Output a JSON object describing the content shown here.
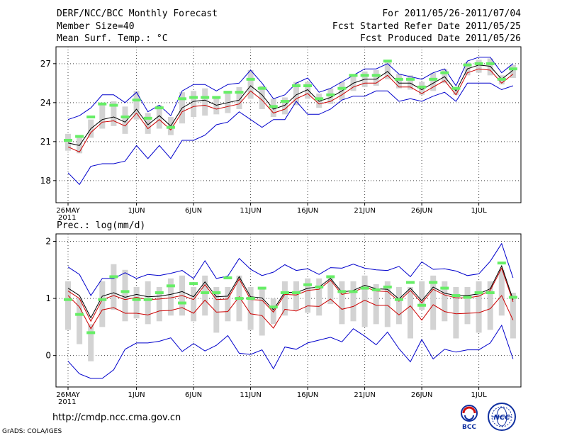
{
  "header": {
    "title": "DERF/NCC/BCC Monthly Forecast",
    "member_size": "Member Size=40",
    "variable": "Mean Surf. Temp.: °C",
    "period": "For 2011/05/26-2011/07/04",
    "fcst_started": "Fcst Started Refer Date 2011/05/25",
    "fcst_produced": "Fcst Produced Date 2011/05/26"
  },
  "footer": {
    "url": "http://cmdp.ncc.cma.gov.cn",
    "credit": "GrADS: COLA/IGES",
    "logo_bcc": "BCC",
    "logo_ncc": "NCC"
  },
  "colors": {
    "max_min_line": "#0000cc",
    "mean_line": "#000000",
    "median_line": "#cc0000",
    "box": "#d3d3d3",
    "obs_marker": "#66ee66",
    "grid": "#444444"
  },
  "chart_data": [
    {
      "type": "line",
      "title": "Mean Surf. Temp.: °C",
      "x_tick_labels": [
        "26MAY",
        "1JUN",
        "6JUN",
        "11JUN",
        "16JUN",
        "21JUN",
        "26JUN",
        "1JUL"
      ],
      "x_tick_year": "2011",
      "x_tick_day_index": [
        0,
        6,
        11,
        16,
        21,
        26,
        31,
        36
      ],
      "y_ticks": [
        18,
        21,
        24,
        27
      ],
      "y_tick_labels": [
        "18",
        "21",
        "24",
        "27"
      ],
      "ylim": [
        16.3,
        28.3
      ],
      "n_days": 40,
      "series": [
        {
          "name": "max",
          "values": [
            22.7,
            23.0,
            23.6,
            24.6,
            24.6,
            24.0,
            24.8,
            23.3,
            23.8,
            23.0,
            24.9,
            25.4,
            25.4,
            24.9,
            25.4,
            25.5,
            26.5,
            25.5,
            24.3,
            24.6,
            25.5,
            25.9,
            24.8,
            25.1,
            25.6,
            26.1,
            26.6,
            26.6,
            27.0,
            26.2,
            26.0,
            25.8,
            26.3,
            26.6,
            25.3,
            27.2,
            27.5,
            27.5,
            26.3,
            27.0
          ]
        },
        {
          "name": "min",
          "values": [
            18.6,
            17.7,
            19.1,
            19.3,
            19.3,
            19.5,
            20.7,
            19.7,
            20.7,
            19.7,
            21.1,
            21.1,
            21.5,
            22.3,
            22.5,
            23.3,
            22.7,
            22.1,
            22.7,
            22.7,
            24.1,
            23.1,
            23.1,
            23.5,
            24.2,
            24.5,
            24.5,
            24.9,
            24.9,
            24.1,
            24.3,
            24.1,
            24.5,
            24.8,
            24.1,
            25.5,
            25.5,
            25.5,
            25.0,
            25.3
          ]
        },
        {
          "name": "mean",
          "values": [
            20.9,
            20.7,
            22.0,
            22.7,
            22.9,
            22.5,
            23.5,
            22.3,
            23.0,
            22.2,
            23.6,
            24.1,
            24.2,
            23.8,
            24.0,
            24.2,
            25.3,
            24.6,
            23.5,
            23.8,
            24.6,
            25.0,
            24.1,
            24.4,
            24.9,
            25.5,
            25.8,
            25.8,
            26.4,
            25.5,
            25.5,
            25.0,
            25.5,
            26.0,
            24.9,
            26.6,
            26.9,
            26.8,
            25.8,
            26.5
          ]
        },
        {
          "name": "median",
          "values": [
            20.6,
            20.2,
            21.7,
            22.5,
            22.6,
            22.2,
            23.2,
            22.0,
            22.7,
            21.9,
            23.3,
            23.7,
            23.8,
            23.5,
            23.7,
            23.9,
            24.9,
            24.2,
            23.2,
            23.5,
            24.3,
            24.7,
            23.9,
            24.1,
            24.6,
            25.2,
            25.5,
            25.5,
            26.1,
            25.2,
            25.2,
            24.7,
            25.2,
            25.7,
            24.6,
            26.3,
            26.6,
            26.5,
            25.5,
            26.2
          ]
        },
        {
          "name": "box_q1",
          "values": [
            20.3,
            20.1,
            21.3,
            22.0,
            22.2,
            21.6,
            22.7,
            21.6,
            22.0,
            21.5,
            22.4,
            22.9,
            23.0,
            23.1,
            23.2,
            23.5,
            24.3,
            23.5,
            22.9,
            23.1,
            23.8,
            24.3,
            23.6,
            23.9,
            24.2,
            24.9,
            25.2,
            25.3,
            25.8,
            25.1,
            25.0,
            24.6,
            24.9,
            25.5,
            24.6,
            26.1,
            26.3,
            26.1,
            25.4,
            25.9
          ]
        },
        {
          "name": "box_q3",
          "values": [
            21.6,
            21.4,
            22.7,
            23.9,
            24.1,
            23.7,
            24.9,
            23.2,
            23.8,
            22.9,
            24.8,
            24.9,
            25.1,
            24.5,
            24.9,
            25.2,
            26.5,
            25.3,
            24.3,
            24.4,
            25.6,
            25.6,
            24.7,
            25.1,
            25.6,
            26.2,
            26.4,
            26.5,
            27.2,
            26.2,
            26.1,
            25.6,
            26.3,
            26.6,
            25.1,
            27.1,
            27.3,
            27.4,
            26.1,
            26.9
          ]
        },
        {
          "name": "obs",
          "values": [
            21.1,
            21.4,
            22.9,
            23.9,
            23.8,
            22.9,
            24.2,
            22.8,
            23.6,
            22.1,
            24.3,
            24.4,
            24.4,
            24.4,
            24.8,
            24.8,
            25.8,
            25.1,
            23.7,
            24.1,
            25.3,
            25.3,
            24.3,
            24.6,
            25.1,
            26.1,
            26.1,
            26.1,
            27.2,
            25.8,
            25.8,
            25.2,
            25.8,
            26.3,
            25.1,
            26.9,
            27.0,
            27.0,
            25.8,
            26.6
          ]
        }
      ]
    },
    {
      "type": "line",
      "title": "Prec.: log(mm/d)",
      "x_tick_labels": [
        "26MAY",
        "1JUN",
        "6JUN",
        "11JUN",
        "16JUN",
        "21JUN",
        "26JUN",
        "1JUL"
      ],
      "x_tick_year": "2011",
      "x_tick_day_index": [
        0,
        6,
        11,
        16,
        21,
        26,
        31,
        36
      ],
      "y_ticks": [
        0,
        1,
        2
      ],
      "y_tick_labels": [
        "0",
        "1",
        "2"
      ],
      "ylim": [
        -0.55,
        2.13
      ],
      "n_days": 40,
      "series": [
        {
          "name": "max",
          "values": [
            1.55,
            1.42,
            1.05,
            1.35,
            1.35,
            1.45,
            1.35,
            1.42,
            1.4,
            1.44,
            1.49,
            1.35,
            1.66,
            1.35,
            1.39,
            1.7,
            1.51,
            1.4,
            1.46,
            1.59,
            1.49,
            1.52,
            1.42,
            1.54,
            1.53,
            1.6,
            1.53,
            1.5,
            1.49,
            1.56,
            1.38,
            1.64,
            1.51,
            1.52,
            1.48,
            1.4,
            1.43,
            1.65,
            1.96,
            1.36
          ]
        },
        {
          "name": "min",
          "values": [
            -0.1,
            -0.32,
            -0.4,
            -0.4,
            -0.25,
            0.11,
            0.22,
            0.22,
            0.25,
            0.31,
            0.07,
            0.21,
            0.08,
            0.18,
            0.35,
            0.04,
            0.02,
            0.1,
            -0.23,
            0.15,
            0.11,
            0.22,
            0.27,
            0.32,
            0.24,
            0.47,
            0.34,
            0.19,
            0.41,
            0.12,
            -0.11,
            0.28,
            -0.06,
            0.11,
            0.06,
            0.1,
            0.1,
            0.22,
            0.53,
            -0.06
          ]
        },
        {
          "name": "mean",
          "values": [
            1.18,
            1.05,
            0.66,
            1.04,
            1.1,
            1.02,
            1.07,
            1.03,
            1.04,
            1.07,
            1.12,
            1.03,
            1.29,
            1.03,
            1.04,
            1.38,
            1.03,
            1.01,
            0.8,
            1.11,
            1.1,
            1.18,
            1.2,
            1.35,
            1.11,
            1.14,
            1.23,
            1.17,
            1.16,
            0.99,
            1.18,
            0.96,
            1.2,
            1.09,
            1.05,
            1.05,
            1.08,
            1.17,
            1.57,
            0.98
          ]
        },
        {
          "name": "median",
          "values": [
            1.13,
            1.0,
            0.6,
            0.98,
            1.05,
            0.98,
            1.02,
            0.98,
            0.99,
            1.01,
            1.05,
            0.98,
            1.24,
            0.98,
            0.99,
            1.34,
            0.98,
            0.97,
            0.76,
            1.07,
            1.06,
            1.14,
            1.16,
            1.32,
            1.07,
            1.11,
            1.2,
            1.13,
            1.12,
            0.95,
            1.14,
            0.92,
            1.16,
            1.06,
            1.01,
            1.01,
            1.04,
            1.14,
            1.53,
            0.94
          ]
        },
        {
          "name": "pct10",
          "values": [
            1.05,
            0.85,
            0.47,
            0.8,
            0.84,
            0.74,
            0.74,
            0.71,
            0.78,
            0.79,
            0.84,
            0.74,
            0.97,
            0.76,
            0.77,
            1.03,
            0.73,
            0.7,
            0.48,
            0.81,
            0.78,
            0.87,
            0.86,
            0.99,
            0.81,
            0.86,
            0.97,
            0.88,
            0.88,
            0.71,
            0.87,
            0.62,
            0.89,
            0.77,
            0.73,
            0.74,
            0.75,
            0.82,
            1.05,
            0.62
          ]
        },
        {
          "name": "box_q1",
          "values": [
            0.45,
            0.2,
            -0.1,
            0.5,
            0.8,
            0.6,
            0.65,
            0.55,
            0.6,
            0.7,
            0.7,
            0.6,
            0.7,
            0.4,
            0.6,
            0.6,
            0.45,
            0.35,
            0.55,
            0.7,
            0.8,
            0.75,
            0.7,
            0.9,
            0.55,
            0.6,
            0.5,
            0.55,
            0.5,
            0.55,
            0.3,
            0.8,
            0.45,
            0.6,
            0.3,
            0.55,
            0.4,
            0.45,
            0.7,
            0.3
          ]
        },
        {
          "name": "box_q3",
          "values": [
            1.3,
            1.0,
            0.55,
            1.3,
            1.6,
            1.5,
            1.2,
            1.3,
            1.2,
            1.35,
            1.4,
            1.2,
            1.4,
            1.2,
            1.2,
            1.4,
            1.2,
            1.2,
            1.0,
            1.3,
            1.3,
            1.35,
            1.35,
            1.4,
            1.3,
            1.3,
            1.4,
            1.25,
            1.3,
            1.2,
            1.2,
            1.3,
            1.4,
            1.3,
            1.2,
            1.2,
            1.3,
            1.3,
            1.5,
            1.1
          ]
        },
        {
          "name": "obs",
          "values": [
            0.98,
            0.72,
            0.4,
            0.98,
            1.38,
            1.12,
            0.98,
            0.98,
            1.1,
            1.22,
            0.92,
            1.26,
            1.1,
            1.1,
            1.36,
            1.0,
            1.0,
            1.18,
            0.85,
            1.1,
            1.1,
            1.24,
            1.2,
            1.38,
            1.12,
            1.12,
            1.18,
            1.15,
            1.2,
            0.98,
            1.28,
            0.88,
            1.28,
            1.18,
            1.05,
            1.02,
            1.1,
            1.1,
            1.62,
            1.02
          ]
        }
      ]
    }
  ]
}
